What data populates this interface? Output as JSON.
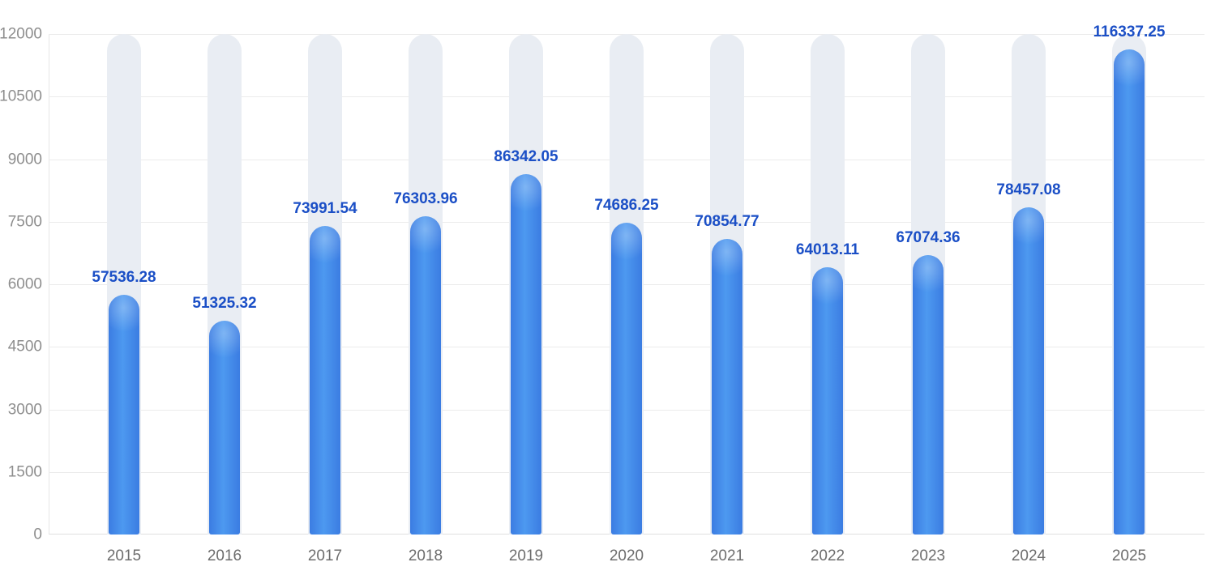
{
  "chart_data": {
    "type": "bar",
    "title": "",
    "xlabel": "",
    "ylabel": "",
    "categories": [
      "2015",
      "2016",
      "2017",
      "2018",
      "2019",
      "2020",
      "2021",
      "2022",
      "2023",
      "2024",
      "2025"
    ],
    "values": [
      57536.28,
      51325.32,
      73991.54,
      76303.96,
      86342.05,
      74686.25,
      70854.77,
      64013.11,
      67074.36,
      78457.08,
      116337.25
    ],
    "value_labels": [
      "57536.28",
      "51325.32",
      "73991.54",
      "76303.96",
      "86342.05",
      "74686.25",
      "70854.77",
      "64013.11",
      "67074.36",
      "78457.08",
      "116337.25"
    ],
    "y_ticks": [
      "0",
      "1500",
      "3000",
      "4500",
      "6000",
      "7500",
      "9000",
      "10500",
      "12000"
    ],
    "ylim": [
      0,
      12000
    ],
    "bar_axis_scale_divisor": 10,
    "grid": "horizontal",
    "legend": "none",
    "background_tracks": true
  },
  "colors": {
    "background": "#ffffff",
    "bar_edge": "#3b7ce2",
    "bar_center": "#4d99f0",
    "value_label": "#1b4fc6",
    "track": "#e9edf3",
    "gridline": "#ebebeb",
    "x_axis_line": "#e0e0e0",
    "y_axis_line": "#e6e6e6",
    "y_tick_label": "#8e8e8e",
    "x_tick_label": "#6d6d6d"
  }
}
